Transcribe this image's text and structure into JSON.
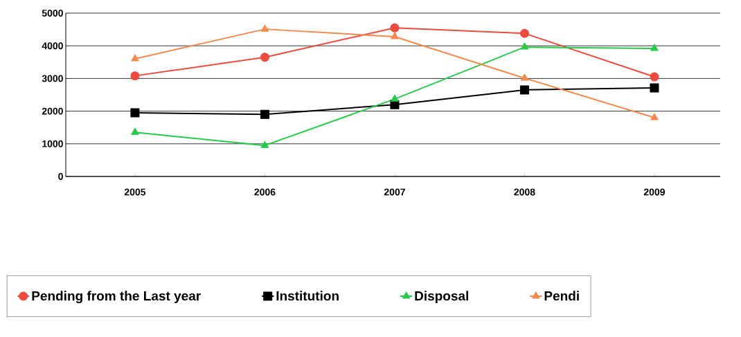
{
  "chart_data": {
    "type": "line",
    "categories": [
      "2005",
      "2006",
      "2007",
      "2008",
      "2009"
    ],
    "series": [
      {
        "name": "Pending from the Last year",
        "color": "#f04a3c",
        "marker": "circle",
        "values": [
          3080,
          3650,
          4550,
          4380,
          3050
        ]
      },
      {
        "name": "Institution",
        "color": "#000000",
        "marker": "square",
        "values": [
          1950,
          1900,
          2200,
          2650,
          2710
        ]
      },
      {
        "name": "Disposal",
        "color": "#22cc44",
        "marker": "triangle",
        "values": [
          1350,
          950,
          2370,
          3960,
          3920
        ]
      },
      {
        "name": "Pendi",
        "color": "#f5884a",
        "marker": "triangle",
        "values": [
          3600,
          4510,
          4280,
          3010,
          1800
        ]
      }
    ],
    "ylim": [
      0,
      5000
    ],
    "yticks": [
      0,
      1000,
      2000,
      3000,
      4000,
      5000
    ],
    "grid": "y",
    "legend": "bottom",
    "line_style": "solid"
  }
}
